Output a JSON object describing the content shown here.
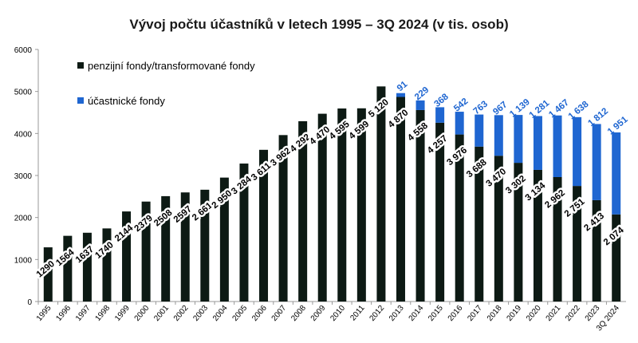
{
  "chart_data": {
    "type": "bar",
    "stacked": true,
    "title": "Vývoj počtu účastníků v letech 1995 – 3Q 2024 (v tis. osob)",
    "xlabel": "",
    "ylabel": "",
    "ylim": [
      0,
      6000
    ],
    "yticks": [
      0,
      1000,
      2000,
      3000,
      4000,
      5000,
      6000
    ],
    "grid": false,
    "legend_position": "top-left",
    "categories": [
      "1995",
      "1996",
      "1997",
      "1998",
      "1999",
      "2000",
      "2001",
      "2002",
      "2003",
      "2004",
      "2005",
      "2006",
      "2007",
      "2008",
      "2009",
      "2010",
      "2011",
      "2012",
      "2013",
      "2014",
      "2015",
      "2016",
      "2017",
      "2018",
      "2019",
      "2020",
      "2021",
      "2022",
      "2023",
      "3Q 2024"
    ],
    "series": [
      {
        "name": "penzijní fondy/transformované fondy",
        "color": "#0d1a14",
        "values": [
          1290,
          1564,
          1637,
          1740,
          2144,
          2379,
          2508,
          2597,
          2661,
          2950,
          3284,
          3611,
          3962,
          4292,
          4470,
          4595,
          4599,
          5120,
          4870,
          4558,
          4257,
          3976,
          3688,
          3470,
          3302,
          3134,
          2962,
          2751,
          2413,
          2074
        ],
        "labels": [
          "1290",
          "1564",
          "1637",
          "1740",
          "2144",
          "2379",
          "2508",
          "2597",
          "2 661",
          "2 950",
          "3 284",
          "3 611",
          "3 962",
          "4 292",
          "4 470",
          "4 595",
          "4 599",
          "5 120",
          "4 870",
          "4 558",
          "4 257",
          "3 976",
          "3 688",
          "3 470",
          "3 302",
          "3 134",
          "2 962",
          "2 751",
          "2 413",
          "2 074"
        ]
      },
      {
        "name": "účastnické fondy",
        "color": "#1f66d1",
        "values": [
          null,
          null,
          null,
          null,
          null,
          null,
          null,
          null,
          null,
          null,
          null,
          null,
          null,
          null,
          null,
          null,
          null,
          null,
          91,
          229,
          368,
          542,
          763,
          967,
          1139,
          1281,
          1467,
          1638,
          1812,
          1951
        ],
        "labels": [
          "",
          "",
          "",
          "",
          "",
          "",
          "",
          "",
          "",
          "",
          "",
          "",
          "",
          "",
          "",
          "",
          "",
          "",
          "91",
          "229",
          "368",
          "542",
          "763",
          "967",
          "1 139",
          "1 281",
          "1 467",
          "1 638",
          "1 812",
          "1 951"
        ]
      }
    ]
  }
}
